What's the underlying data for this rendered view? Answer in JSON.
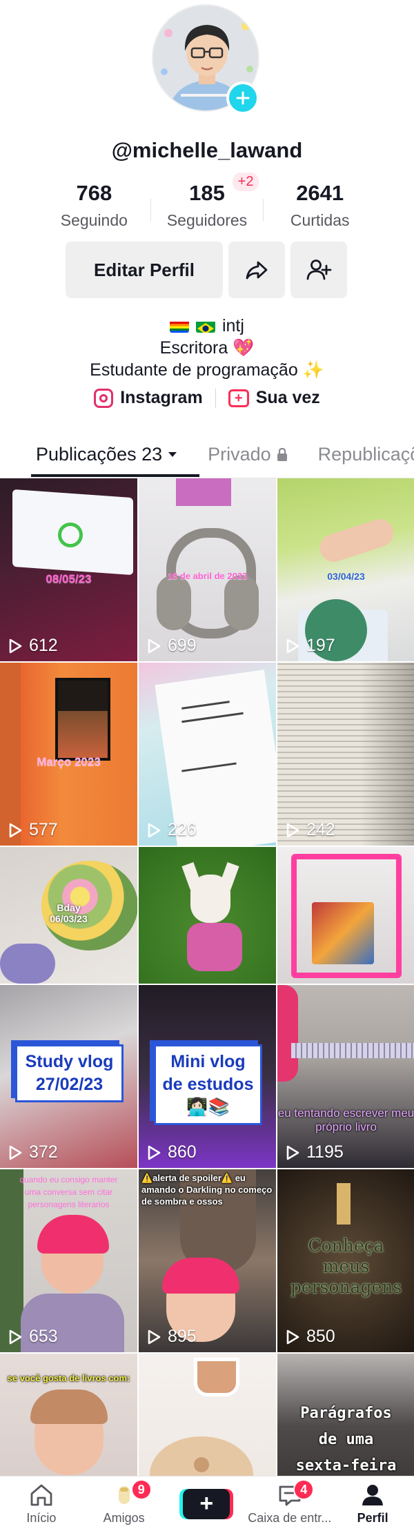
{
  "profile": {
    "username": "@michelle_lawand",
    "stats": {
      "following": {
        "value": "768",
        "label": "Seguindo"
      },
      "followers": {
        "value": "185",
        "label": "Seguidores",
        "delta": "+2"
      },
      "likes": {
        "value": "2641",
        "label": "Curtidas"
      }
    },
    "edit_button": "Editar Perfil",
    "bio": {
      "line1": "intj",
      "line2": "Escritora 💖",
      "line3": "Estudante de programação ✨"
    },
    "links": {
      "instagram": "Instagram",
      "your_turn": "Sua vez"
    }
  },
  "tabs": {
    "posts": "Publicações 23",
    "private": "Privado",
    "reposts": "Republicações"
  },
  "videos": [
    {
      "views": "612",
      "overlay": "08/05/23"
    },
    {
      "views": "699",
      "overlay": "18 de abril de 2023"
    },
    {
      "views": "197",
      "overlay": "03/04/23"
    },
    {
      "views": "577",
      "overlay": "Março 2023"
    },
    {
      "views": "226",
      "overlay": ""
    },
    {
      "views": "242",
      "overlay": ""
    },
    {
      "views": "",
      "overlay": "Bday\n06/03/23"
    },
    {
      "views": "",
      "overlay": ""
    },
    {
      "views": "",
      "overlay": ""
    },
    {
      "views": "372",
      "overlay": "Study vlog 27/02/23"
    },
    {
      "views": "860",
      "overlay": "Mini vlog de estudos 👩🏻‍💻📚"
    },
    {
      "views": "1195",
      "overlay": "eu tentando escrever meu próprio livro"
    },
    {
      "views": "653",
      "overlay": "quando eu consigo manter uma conversa sem citar personagens literarios"
    },
    {
      "views": "895",
      "overlay": "⚠️alerta de spoiler⚠️ eu amando o Darkling no começo de sombra e ossos"
    },
    {
      "views": "850",
      "overlay": "Conheça meus personagens"
    },
    {
      "views": "",
      "overlay": "se você gosta de livros com:"
    },
    {
      "views": "",
      "overlay": ""
    },
    {
      "views": "",
      "overlay": "Parágrafos de uma sexta-feira"
    }
  ],
  "nav": {
    "home": "Início",
    "friends": "Amigos",
    "friends_badge": "9",
    "inbox": "Caixa de entr...",
    "inbox_badge": "4",
    "profile": "Perfil"
  },
  "colors": {
    "accent": "#fe2c55",
    "cyan": "#25f4ee",
    "text": "#161823"
  }
}
